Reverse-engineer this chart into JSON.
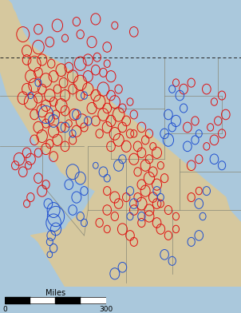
{
  "background_color": "#c9dcea",
  "land_color": "#d6c89e",
  "ocean_color": "#aac8dc",
  "border_color": "#888877",
  "canada_border_color": "#333333",
  "red_color": "#e01010",
  "blue_color": "#2050d0",
  "scale_label": "Miles",
  "scale_0": "0",
  "scale_300": "300",
  "lon_min": -125.5,
  "lon_max": -94.0,
  "lat_min": 31.0,
  "lat_max": 53.5,
  "red_circles": [
    [
      -122.5,
      50.8,
      12
    ],
    [
      -120.5,
      51.2,
      8
    ],
    [
      -118.0,
      51.5,
      10
    ],
    [
      -115.5,
      51.8,
      7
    ],
    [
      -113.0,
      52.0,
      9
    ],
    [
      -110.5,
      51.5,
      6
    ],
    [
      -108.0,
      51.0,
      8
    ],
    [
      -122.0,
      49.5,
      9
    ],
    [
      -120.5,
      49.8,
      11
    ],
    [
      -119.0,
      50.2,
      8
    ],
    [
      -117.0,
      50.5,
      6
    ],
    [
      -115.0,
      50.8,
      7
    ],
    [
      -113.5,
      50.2,
      9
    ],
    [
      -111.5,
      49.8,
      8
    ],
    [
      -122.0,
      48.8,
      8
    ],
    [
      -121.0,
      48.5,
      12
    ],
    [
      -120.0,
      48.8,
      9
    ],
    [
      -118.8,
      48.5,
      7
    ],
    [
      -117.5,
      48.0,
      10
    ],
    [
      -116.5,
      48.2,
      8
    ],
    [
      -115.0,
      48.5,
      11
    ],
    [
      -114.0,
      48.8,
      9
    ],
    [
      -112.8,
      49.0,
      7
    ],
    [
      -111.5,
      48.5,
      6
    ],
    [
      -121.5,
      47.5,
      10
    ],
    [
      -120.5,
      47.8,
      8
    ],
    [
      -119.5,
      47.2,
      11
    ],
    [
      -118.5,
      47.5,
      9
    ],
    [
      -117.2,
      47.0,
      8
    ],
    [
      -116.0,
      47.5,
      10
    ],
    [
      -115.0,
      47.0,
      12
    ],
    [
      -114.0,
      47.5,
      9
    ],
    [
      -113.0,
      48.0,
      8
    ],
    [
      -112.0,
      47.8,
      7
    ],
    [
      -111.0,
      47.5,
      9
    ],
    [
      -122.0,
      46.5,
      9
    ],
    [
      -121.0,
      46.8,
      11
    ],
    [
      -120.0,
      46.5,
      8
    ],
    [
      -119.0,
      46.0,
      10
    ],
    [
      -118.0,
      46.5,
      7
    ],
    [
      -117.0,
      46.0,
      9
    ],
    [
      -116.0,
      46.5,
      8
    ],
    [
      -122.5,
      45.8,
      10
    ],
    [
      -121.5,
      45.5,
      12
    ],
    [
      -120.5,
      45.8,
      8
    ],
    [
      -119.5,
      45.2,
      9
    ],
    [
      -118.5,
      45.5,
      7
    ],
    [
      -117.5,
      45.2,
      11
    ],
    [
      -121.0,
      44.5,
      8
    ],
    [
      -120.0,
      44.8,
      10
    ],
    [
      -119.0,
      44.2,
      9
    ],
    [
      -118.2,
      44.5,
      7
    ],
    [
      -117.0,
      44.8,
      8
    ],
    [
      -115.8,
      44.5,
      9
    ],
    [
      -114.8,
      44.0,
      11
    ],
    [
      -120.5,
      43.5,
      9
    ],
    [
      -119.5,
      43.8,
      7
    ],
    [
      -118.5,
      43.2,
      10
    ],
    [
      -117.5,
      43.5,
      8
    ],
    [
      -116.5,
      43.8,
      6
    ],
    [
      -115.5,
      43.2,
      9
    ],
    [
      -114.5,
      43.5,
      7
    ],
    [
      -121.0,
      42.5,
      8
    ],
    [
      -120.0,
      42.8,
      10
    ],
    [
      -119.0,
      42.2,
      7
    ],
    [
      -118.0,
      42.5,
      9
    ],
    [
      -117.0,
      42.0,
      8
    ],
    [
      -116.0,
      42.5,
      7
    ],
    [
      -120.5,
      41.5,
      7
    ],
    [
      -119.5,
      41.8,
      9
    ],
    [
      -118.5,
      41.2,
      8
    ],
    [
      -123.0,
      41.0,
      10
    ],
    [
      -122.0,
      41.5,
      8
    ],
    [
      -121.5,
      41.0,
      9
    ],
    [
      -123.5,
      40.5,
      7
    ],
    [
      -122.5,
      40.0,
      8
    ],
    [
      -121.8,
      40.5,
      6
    ],
    [
      -120.5,
      39.5,
      8
    ],
    [
      -119.5,
      39.0,
      7
    ],
    [
      -120.0,
      38.5,
      9
    ],
    [
      -122.0,
      37.5,
      6
    ],
    [
      -121.5,
      38.0,
      7
    ],
    [
      -115.0,
      46.0,
      8
    ],
    [
      -114.0,
      46.5,
      10
    ],
    [
      -113.0,
      46.0,
      9
    ],
    [
      -112.0,
      46.5,
      11
    ],
    [
      -111.0,
      46.0,
      8
    ],
    [
      -110.0,
      46.5,
      7
    ],
    [
      -113.5,
      45.0,
      9
    ],
    [
      -112.5,
      45.5,
      11
    ],
    [
      -111.5,
      45.0,
      8
    ],
    [
      -110.5,
      45.5,
      10
    ],
    [
      -109.5,
      45.0,
      7
    ],
    [
      -108.5,
      45.5,
      6
    ],
    [
      -113.0,
      44.0,
      8
    ],
    [
      -112.0,
      44.5,
      10
    ],
    [
      -111.0,
      44.0,
      9
    ],
    [
      -110.0,
      44.5,
      11
    ],
    [
      -109.0,
      44.0,
      8
    ],
    [
      -108.0,
      44.5,
      7
    ],
    [
      -112.5,
      43.0,
      7
    ],
    [
      -111.5,
      43.5,
      9
    ],
    [
      -110.5,
      43.0,
      10
    ],
    [
      -109.5,
      43.5,
      8
    ],
    [
      -108.5,
      43.0,
      7
    ],
    [
      -111.0,
      42.0,
      8
    ],
    [
      -110.0,
      42.5,
      10
    ],
    [
      -109.0,
      42.0,
      9
    ],
    [
      -108.0,
      43.0,
      6
    ],
    [
      -107.0,
      43.5,
      8
    ],
    [
      -106.0,
      43.0,
      7
    ],
    [
      -107.5,
      42.0,
      8
    ],
    [
      -106.5,
      42.5,
      7
    ],
    [
      -105.5,
      42.0,
      6
    ],
    [
      -108.0,
      41.0,
      9
    ],
    [
      -107.0,
      41.5,
      8
    ],
    [
      -106.0,
      41.0,
      7
    ],
    [
      -105.0,
      41.5,
      9
    ],
    [
      -107.5,
      40.0,
      7
    ],
    [
      -106.5,
      40.5,
      9
    ],
    [
      -105.5,
      40.0,
      8
    ],
    [
      -104.5,
      40.5,
      6
    ],
    [
      -107.0,
      39.0,
      8
    ],
    [
      -106.0,
      39.5,
      10
    ],
    [
      -105.0,
      39.0,
      9
    ],
    [
      -104.0,
      39.5,
      7
    ],
    [
      -107.5,
      38.0,
      7
    ],
    [
      -106.5,
      38.5,
      9
    ],
    [
      -105.5,
      38.0,
      8
    ],
    [
      -108.0,
      37.0,
      8
    ],
    [
      -107.0,
      37.5,
      10
    ],
    [
      -106.0,
      37.0,
      9
    ],
    [
      -105.0,
      37.5,
      8
    ],
    [
      -107.0,
      36.0,
      7
    ],
    [
      -106.0,
      36.5,
      9
    ],
    [
      -105.0,
      36.0,
      8
    ],
    [
      -104.5,
      37.5,
      6
    ],
    [
      -103.5,
      37.0,
      7
    ],
    [
      -102.5,
      36.5,
      6
    ],
    [
      -104.5,
      35.5,
      8
    ],
    [
      -103.5,
      35.0,
      7
    ],
    [
      -102.5,
      35.5,
      6
    ],
    [
      -109.5,
      35.5,
      9
    ],
    [
      -108.5,
      35.0,
      8
    ],
    [
      -108.0,
      34.5,
      7
    ],
    [
      -111.5,
      38.5,
      7
    ],
    [
      -110.5,
      38.0,
      9
    ],
    [
      -110.0,
      37.5,
      8
    ],
    [
      -109.0,
      38.0,
      7
    ],
    [
      -111.5,
      37.0,
      8
    ],
    [
      -110.5,
      36.5,
      7
    ],
    [
      -112.5,
      36.0,
      7
    ],
    [
      -111.5,
      35.5,
      6
    ],
    [
      -96.5,
      46.0,
      7
    ],
    [
      -97.5,
      45.5,
      6
    ],
    [
      -98.5,
      46.5,
      8
    ],
    [
      -96.0,
      44.5,
      8
    ],
    [
      -97.0,
      44.0,
      7
    ],
    [
      -98.0,
      43.5,
      6
    ],
    [
      -96.5,
      43.0,
      7
    ],
    [
      -97.5,
      42.5,
      8
    ],
    [
      -98.5,
      42.0,
      6
    ],
    [
      -100.5,
      47.0,
      7
    ],
    [
      -101.5,
      46.5,
      8
    ],
    [
      -102.5,
      47.0,
      6
    ],
    [
      -100.0,
      44.0,
      7
    ],
    [
      -101.0,
      43.5,
      8
    ],
    [
      -99.5,
      41.0,
      7
    ],
    [
      -100.5,
      40.5,
      8
    ],
    [
      -99.5,
      38.5,
      6
    ],
    [
      -100.5,
      38.0,
      7
    ]
  ],
  "blue_circles": [
    [
      -120.5,
      47.0,
      6
    ],
    [
      -121.5,
      46.0,
      5
    ],
    [
      -119.5,
      44.5,
      14
    ],
    [
      -118.5,
      44.0,
      10
    ],
    [
      -117.0,
      43.5,
      8
    ],
    [
      -116.0,
      43.0,
      6
    ],
    [
      -119.2,
      37.5,
      8
    ],
    [
      -118.5,
      37.0,
      12
    ],
    [
      -118.2,
      36.5,
      16
    ],
    [
      -118.5,
      36.0,
      14
    ],
    [
      -118.2,
      35.5,
      10
    ],
    [
      -118.8,
      35.0,
      8
    ],
    [
      -119.0,
      34.5,
      6
    ],
    [
      -118.5,
      34.0,
      7
    ],
    [
      -119.0,
      33.5,
      5
    ],
    [
      -114.5,
      46.0,
      6
    ],
    [
      -115.5,
      44.5,
      8
    ],
    [
      -114.0,
      44.0,
      7
    ],
    [
      -116.0,
      40.0,
      12
    ],
    [
      -115.0,
      39.5,
      10
    ],
    [
      -116.5,
      39.0,
      8
    ],
    [
      -114.5,
      38.5,
      7
    ],
    [
      -115.5,
      38.0,
      9
    ],
    [
      -116.0,
      37.0,
      8
    ],
    [
      -115.0,
      36.5,
      7
    ],
    [
      -114.5,
      36.0,
      6
    ],
    [
      -112.0,
      40.0,
      8
    ],
    [
      -111.5,
      39.5,
      6
    ],
    [
      -113.0,
      40.5,
      5
    ],
    [
      -110.0,
      40.5,
      9
    ],
    [
      -109.5,
      41.0,
      7
    ],
    [
      -108.5,
      38.5,
      7
    ],
    [
      -108.0,
      37.5,
      8
    ],
    [
      -108.5,
      36.5,
      6
    ],
    [
      -107.0,
      36.5,
      7
    ],
    [
      -105.0,
      38.5,
      7
    ],
    [
      -104.5,
      38.0,
      6
    ],
    [
      -104.0,
      43.0,
      8
    ],
    [
      -103.5,
      42.5,
      10
    ],
    [
      -103.0,
      43.5,
      7
    ],
    [
      -103.5,
      44.5,
      8
    ],
    [
      -102.5,
      44.0,
      9
    ],
    [
      -101.5,
      45.0,
      7
    ],
    [
      -103.0,
      46.5,
      6
    ],
    [
      -102.0,
      46.0,
      8
    ],
    [
      -101.0,
      42.0,
      8
    ],
    [
      -100.0,
      42.5,
      7
    ],
    [
      -99.5,
      43.0,
      6
    ],
    [
      -97.5,
      41.0,
      8
    ],
    [
      -96.5,
      40.5,
      7
    ],
    [
      -98.5,
      38.5,
      7
    ],
    [
      -99.5,
      37.5,
      8
    ],
    [
      -99.0,
      36.5,
      6
    ],
    [
      -99.5,
      35.0,
      8
    ],
    [
      -100.5,
      34.5,
      7
    ],
    [
      -104.0,
      33.5,
      8
    ],
    [
      -103.0,
      33.0,
      7
    ],
    [
      -109.5,
      32.5,
      8
    ],
    [
      -110.5,
      32.0,
      9
    ]
  ]
}
